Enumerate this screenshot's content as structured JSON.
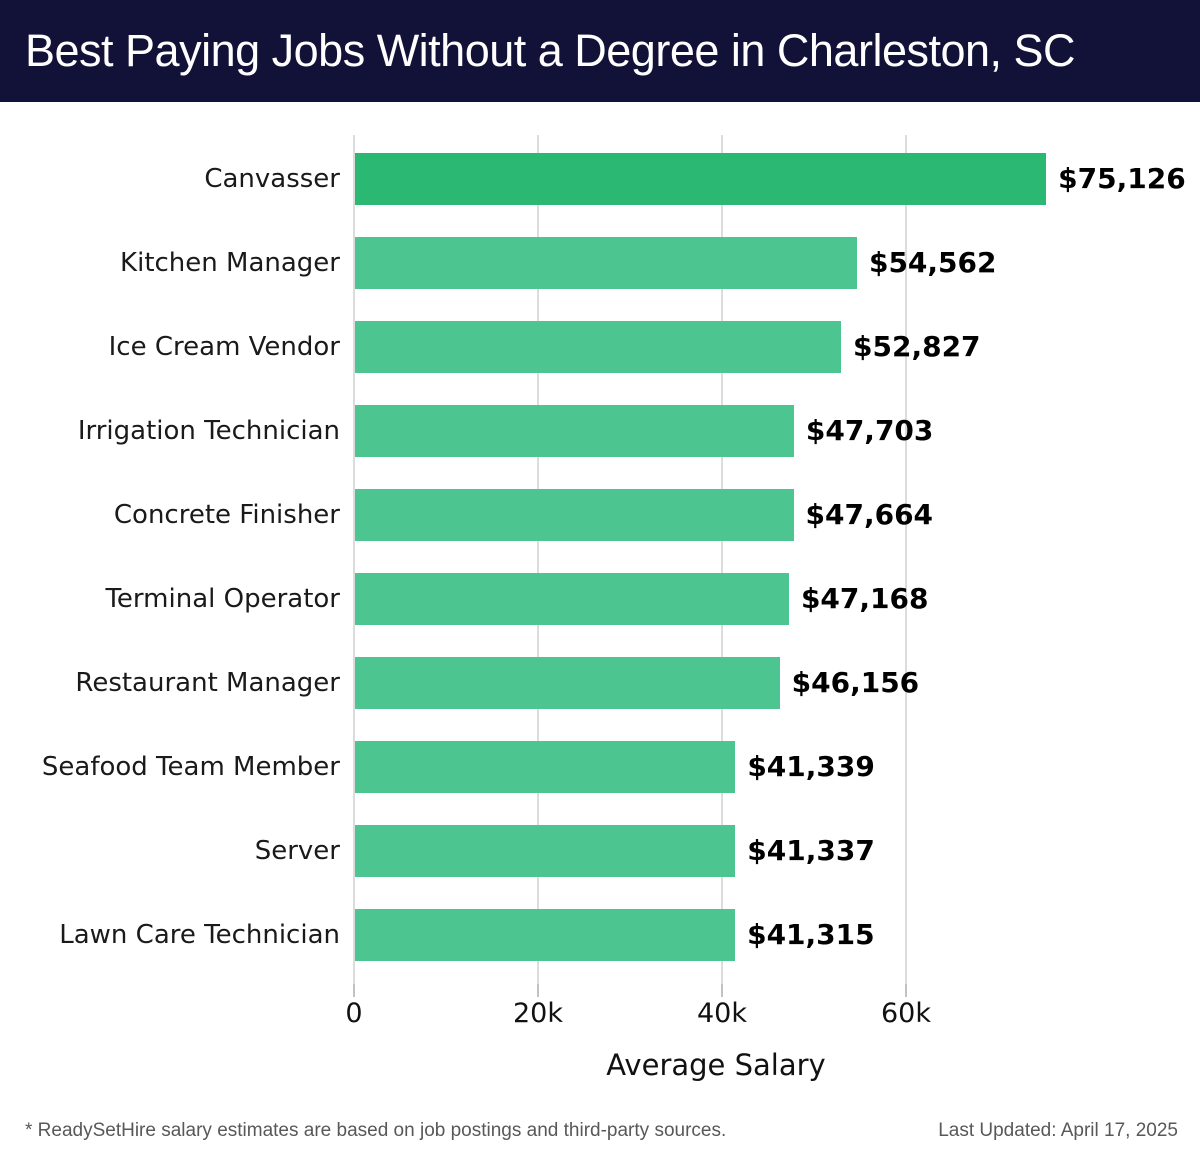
{
  "header": {
    "title": "Best Paying Jobs Without a Degree in Charleston, SC",
    "background_color": "#121238",
    "text_color": "#ffffff"
  },
  "chart_data": {
    "type": "bar",
    "orientation": "horizontal",
    "title": "Best Paying Jobs Without a Degree in Charleston, SC",
    "categories": [
      "Canvasser",
      "Kitchen Manager",
      "Ice Cream Vendor",
      "Irrigation Technician",
      "Concrete Finisher",
      "Terminal Operator",
      "Restaurant Manager",
      "Seafood Team Member",
      "Server",
      "Lawn Care Technician"
    ],
    "values": [
      75126,
      54562,
      52827,
      47703,
      47664,
      47168,
      46156,
      41339,
      41337,
      41315
    ],
    "value_labels": [
      "$75,126",
      "$54,562",
      "$52,827",
      "$47,703",
      "$47,664",
      "$47,168",
      "$46,156",
      "$41,339",
      "$41,337",
      "$41,315"
    ],
    "xlabel": "Average Salary",
    "ylabel": "",
    "x_tick_labels": [
      "0",
      "20k",
      "40k",
      "60k"
    ],
    "x_tick_values": [
      0,
      20000,
      40000,
      60000
    ],
    "xlim": [
      0,
      79000
    ],
    "grid": "vertical-only",
    "legend": "none",
    "highlight_bar_color": "#2BB873",
    "bar_color": "#4DC590",
    "gridline_color": "#dcdcdc"
  },
  "footer": {
    "note": "* ReadySetHire salary estimates are based on job postings and third-party sources.",
    "updated": "Last Updated: April 17, 2025"
  }
}
